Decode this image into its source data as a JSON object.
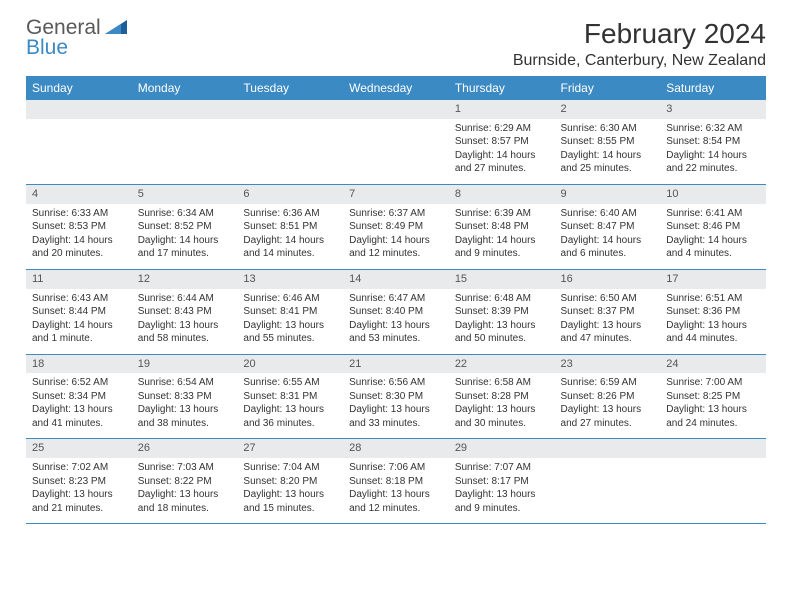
{
  "brand": {
    "general": "General",
    "blue": "Blue"
  },
  "title": "February 2024",
  "location": "Burnside, Canterbury, New Zealand",
  "colors": {
    "header_bg": "#3b8ac4",
    "header_text": "#ffffff",
    "daynum_bg": "#e9eaeb",
    "text": "#333333",
    "rule": "#3b8ac4",
    "logo_gray": "#58595b",
    "logo_blue": "#3b8ac4",
    "page_bg": "#ffffff"
  },
  "typography": {
    "title_fontsize": 28,
    "location_fontsize": 16,
    "dow_fontsize": 12,
    "daynum_fontsize": 11,
    "detail_fontsize": 10,
    "logo_fontsize": 21
  },
  "dow": [
    "Sunday",
    "Monday",
    "Tuesday",
    "Wednesday",
    "Thursday",
    "Friday",
    "Saturday"
  ],
  "weeks": [
    [
      null,
      null,
      null,
      null,
      {
        "n": "1",
        "sr": "6:29 AM",
        "ss": "8:57 PM",
        "dl": "14 hours and 27 minutes."
      },
      {
        "n": "2",
        "sr": "6:30 AM",
        "ss": "8:55 PM",
        "dl": "14 hours and 25 minutes."
      },
      {
        "n": "3",
        "sr": "6:32 AM",
        "ss": "8:54 PM",
        "dl": "14 hours and 22 minutes."
      }
    ],
    [
      {
        "n": "4",
        "sr": "6:33 AM",
        "ss": "8:53 PM",
        "dl": "14 hours and 20 minutes."
      },
      {
        "n": "5",
        "sr": "6:34 AM",
        "ss": "8:52 PM",
        "dl": "14 hours and 17 minutes."
      },
      {
        "n": "6",
        "sr": "6:36 AM",
        "ss": "8:51 PM",
        "dl": "14 hours and 14 minutes."
      },
      {
        "n": "7",
        "sr": "6:37 AM",
        "ss": "8:49 PM",
        "dl": "14 hours and 12 minutes."
      },
      {
        "n": "8",
        "sr": "6:39 AM",
        "ss": "8:48 PM",
        "dl": "14 hours and 9 minutes."
      },
      {
        "n": "9",
        "sr": "6:40 AM",
        "ss": "8:47 PM",
        "dl": "14 hours and 6 minutes."
      },
      {
        "n": "10",
        "sr": "6:41 AM",
        "ss": "8:46 PM",
        "dl": "14 hours and 4 minutes."
      }
    ],
    [
      {
        "n": "11",
        "sr": "6:43 AM",
        "ss": "8:44 PM",
        "dl": "14 hours and 1 minute."
      },
      {
        "n": "12",
        "sr": "6:44 AM",
        "ss": "8:43 PM",
        "dl": "13 hours and 58 minutes."
      },
      {
        "n": "13",
        "sr": "6:46 AM",
        "ss": "8:41 PM",
        "dl": "13 hours and 55 minutes."
      },
      {
        "n": "14",
        "sr": "6:47 AM",
        "ss": "8:40 PM",
        "dl": "13 hours and 53 minutes."
      },
      {
        "n": "15",
        "sr": "6:48 AM",
        "ss": "8:39 PM",
        "dl": "13 hours and 50 minutes."
      },
      {
        "n": "16",
        "sr": "6:50 AM",
        "ss": "8:37 PM",
        "dl": "13 hours and 47 minutes."
      },
      {
        "n": "17",
        "sr": "6:51 AM",
        "ss": "8:36 PM",
        "dl": "13 hours and 44 minutes."
      }
    ],
    [
      {
        "n": "18",
        "sr": "6:52 AM",
        "ss": "8:34 PM",
        "dl": "13 hours and 41 minutes."
      },
      {
        "n": "19",
        "sr": "6:54 AM",
        "ss": "8:33 PM",
        "dl": "13 hours and 38 minutes."
      },
      {
        "n": "20",
        "sr": "6:55 AM",
        "ss": "8:31 PM",
        "dl": "13 hours and 36 minutes."
      },
      {
        "n": "21",
        "sr": "6:56 AM",
        "ss": "8:30 PM",
        "dl": "13 hours and 33 minutes."
      },
      {
        "n": "22",
        "sr": "6:58 AM",
        "ss": "8:28 PM",
        "dl": "13 hours and 30 minutes."
      },
      {
        "n": "23",
        "sr": "6:59 AM",
        "ss": "8:26 PM",
        "dl": "13 hours and 27 minutes."
      },
      {
        "n": "24",
        "sr": "7:00 AM",
        "ss": "8:25 PM",
        "dl": "13 hours and 24 minutes."
      }
    ],
    [
      {
        "n": "25",
        "sr": "7:02 AM",
        "ss": "8:23 PM",
        "dl": "13 hours and 21 minutes."
      },
      {
        "n": "26",
        "sr": "7:03 AM",
        "ss": "8:22 PM",
        "dl": "13 hours and 18 minutes."
      },
      {
        "n": "27",
        "sr": "7:04 AM",
        "ss": "8:20 PM",
        "dl": "13 hours and 15 minutes."
      },
      {
        "n": "28",
        "sr": "7:06 AM",
        "ss": "8:18 PM",
        "dl": "13 hours and 12 minutes."
      },
      {
        "n": "29",
        "sr": "7:07 AM",
        "ss": "8:17 PM",
        "dl": "13 hours and 9 minutes."
      },
      null,
      null
    ]
  ],
  "labels": {
    "sunrise": "Sunrise:",
    "sunset": "Sunset:",
    "daylight": "Daylight:"
  }
}
